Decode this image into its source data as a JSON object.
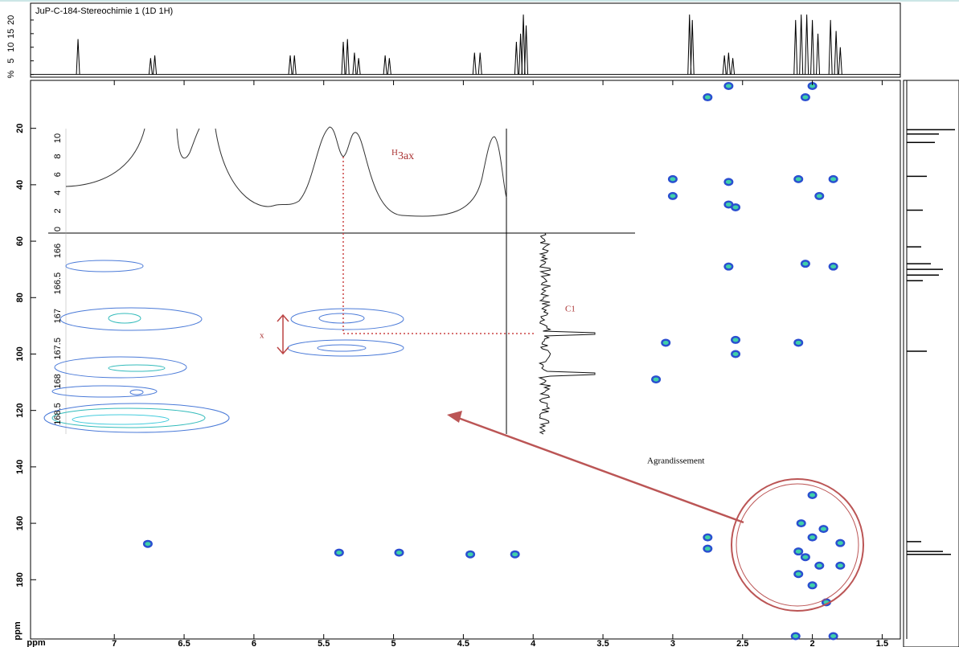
{
  "chart_data": {
    "type": "contour2d",
    "title": "JuP-C-184-Stereochimie 1 (1D 1H)",
    "x_label": "ppm",
    "y_label": "ppm",
    "xlim": [
      7.6,
      1.37
    ],
    "xticks": [
      7,
      6.5,
      6,
      5.5,
      5,
      4.5,
      4,
      3.5,
      3,
      2.5,
      2,
      1.5
    ],
    "ylim": [
      3,
      201
    ],
    "yticks": [
      20,
      40,
      60,
      80,
      100,
      120,
      140,
      160,
      180
    ],
    "peaks": {
      "x": [
        6.76,
        5.39,
        4.96,
        4.45,
        4.13,
        2.75,
        2.75,
        2.08,
        2.0,
        1.92,
        1.8,
        2.05,
        1.95,
        2.1,
        2.0,
        1.8,
        2.0,
        2.1,
        1.9,
        2.0,
        2.05,
        2.6,
        2.75,
        3.0,
        3.0,
        2.6,
        2.6,
        2.1,
        1.85,
        1.95,
        2.55,
        2.05,
        2.6,
        1.85,
        2.1,
        2.55,
        3.05,
        3.12,
        2.55,
        2.12,
        1.85
      ],
      "y": [
        167.3,
        170.4,
        170.4,
        171,
        171,
        165,
        169,
        160,
        165,
        162,
        167,
        172,
        175,
        178,
        182,
        175,
        150,
        170,
        188,
        5,
        9,
        5,
        9,
        38,
        44,
        39,
        47,
        38,
        38,
        44,
        48,
        68,
        69,
        69,
        96,
        95,
        96,
        109,
        100,
        200,
        200
      ]
    },
    "spectrum_1h": {
      "ylim": [
        -1,
        25
      ],
      "yticks": [
        {
          "value": 0,
          "label": "%"
        },
        5,
        10,
        15,
        20
      ],
      "peaks": [
        7.26,
        6.74,
        6.71,
        5.74,
        5.71,
        5.36,
        5.33,
        5.28,
        5.25,
        5.06,
        5.03,
        4.42,
        4.38,
        4.12,
        4.09,
        4.07,
        4.05,
        2.88,
        2.86,
        2.63,
        2.6,
        2.57,
        2.12,
        2.08,
        2.04,
        2.0,
        1.96,
        1.87,
        1.83,
        1.8
      ],
      "heights": [
        13,
        6,
        7,
        7,
        7,
        12,
        13,
        8,
        6,
        7,
        6,
        8,
        8,
        12,
        15,
        22,
        18,
        22,
        20,
        7,
        8,
        6,
        20,
        22,
        22,
        20,
        15,
        20,
        16,
        10
      ]
    },
    "spectrum_13c": {
      "peaks": [
        20.5,
        22,
        25,
        37,
        49,
        62,
        68,
        70,
        72,
        74,
        99,
        166.5,
        170,
        171
      ],
      "heights": [
        60,
        40,
        35,
        25,
        20,
        18,
        30,
        45,
        40,
        20,
        25,
        18,
        45,
        55
      ]
    },
    "inset": {
      "yticks": [
        166,
        166.5,
        167,
        167.5,
        168,
        168.5
      ],
      "top_yticks": [
        0,
        2,
        4,
        6,
        8,
        10
      ]
    },
    "annotations": {
      "h": "H",
      "h_sub": "3ax",
      "c1": "C1",
      "x": "x",
      "zoom": "Agrandissement"
    }
  }
}
